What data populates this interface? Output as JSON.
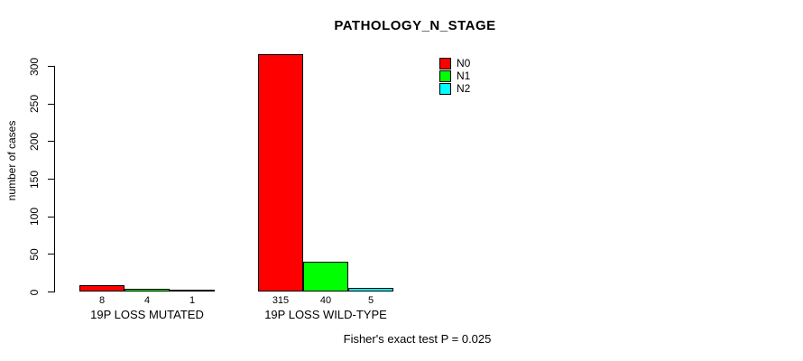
{
  "title": "PATHOLOGY_N_STAGE",
  "y_axis_label": "number of cases",
  "footer": "Fisher's exact test P = 0.025",
  "chart_data": {
    "type": "bar",
    "title": "PATHOLOGY_N_STAGE",
    "xlabel": "",
    "ylabel": "number of cases",
    "categories": [
      "19P LOSS MUTATED",
      "19P LOSS WILD-TYPE"
    ],
    "series": [
      {
        "name": "N0",
        "color": "#FF0000",
        "values": [
          8,
          315
        ]
      },
      {
        "name": "N1",
        "color": "#00FF00",
        "values": [
          4,
          40
        ]
      },
      {
        "name": "N2",
        "color": "#00FFFF",
        "values": [
          1,
          5
        ]
      }
    ],
    "yticks": [
      0,
      50,
      100,
      150,
      200,
      250,
      300
    ],
    "ylim": [
      0,
      315
    ],
    "grid": false,
    "legend_position": "top-right",
    "bar_value_labels_shown": true,
    "annotation": "Fisher's exact test P = 0.025"
  }
}
